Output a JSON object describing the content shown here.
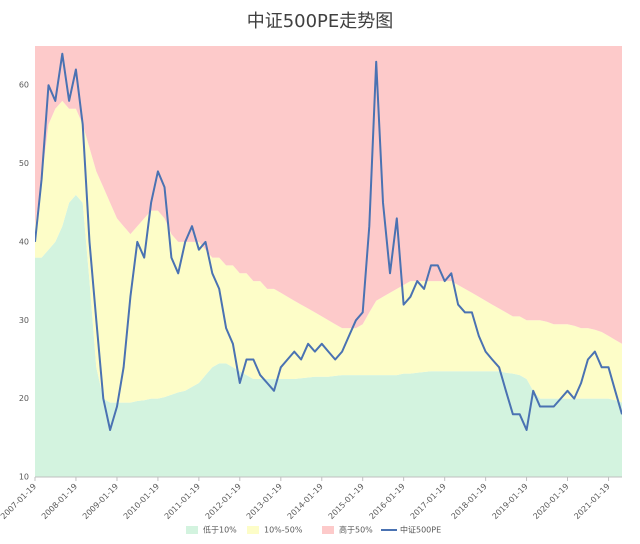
{
  "chart_data": {
    "type": "area-line",
    "title": "中证500PE走势图",
    "x": [
      "2007-01-19",
      "2007-03-19",
      "2007-05-19",
      "2007-07-19",
      "2007-09-19",
      "2007-11-19",
      "2008-01-19",
      "2008-03-19",
      "2008-05-19",
      "2008-07-19",
      "2008-09-19",
      "2008-11-19",
      "2009-01-19",
      "2009-03-19",
      "2009-05-19",
      "2009-07-19",
      "2009-09-19",
      "2009-11-19",
      "2010-01-19",
      "2010-03-19",
      "2010-05-19",
      "2010-07-19",
      "2010-09-19",
      "2010-11-19",
      "2011-01-19",
      "2011-03-19",
      "2011-05-19",
      "2011-07-19",
      "2011-09-19",
      "2011-11-19",
      "2012-01-19",
      "2012-03-19",
      "2012-05-19",
      "2012-07-19",
      "2012-09-19",
      "2012-11-19",
      "2013-01-19",
      "2013-03-19",
      "2013-05-19",
      "2013-07-19",
      "2013-09-19",
      "2013-11-19",
      "2014-01-19",
      "2014-03-19",
      "2014-05-19",
      "2014-07-19",
      "2014-09-19",
      "2014-11-19",
      "2015-01-19",
      "2015-03-19",
      "2015-05-19",
      "2015-07-19",
      "2015-09-19",
      "2015-11-19",
      "2016-01-19",
      "2016-03-19",
      "2016-05-19",
      "2016-07-19",
      "2016-09-19",
      "2016-11-19",
      "2017-01-19",
      "2017-03-19",
      "2017-05-19",
      "2017-07-19",
      "2017-09-19",
      "2017-11-19",
      "2018-01-19",
      "2018-03-19",
      "2018-05-19",
      "2018-07-19",
      "2018-09-19",
      "2018-11-19",
      "2019-01-19",
      "2019-03-19",
      "2019-05-19",
      "2019-07-19",
      "2019-09-19",
      "2019-11-19",
      "2020-01-19",
      "2020-03-19",
      "2020-05-19",
      "2020-07-19",
      "2020-09-19",
      "2020-11-19",
      "2021-01-19",
      "2021-03-19",
      "2021-05-19"
    ],
    "series": [
      {
        "name": "低于10%",
        "kind": "area",
        "color": "#d3f3df",
        "values": [
          38,
          38,
          39,
          40,
          42,
          45,
          46,
          45,
          35,
          24,
          20,
          19.5,
          19.5,
          19.5,
          19.5,
          19.7,
          19.8,
          20,
          20,
          20.2,
          20.5,
          20.8,
          21,
          21.5,
          22,
          23,
          24,
          24.5,
          24.5,
          24,
          23.5,
          23,
          22.5,
          22.5,
          22.5,
          22.5,
          22.5,
          22.5,
          22.5,
          22.6,
          22.7,
          22.8,
          22.8,
          22.8,
          22.9,
          23,
          23,
          23,
          23,
          23,
          23,
          23,
          23,
          23,
          23.2,
          23.2,
          23.3,
          23.4,
          23.5,
          23.5,
          23.5,
          23.5,
          23.5,
          23.5,
          23.5,
          23.5,
          23.5,
          23.5,
          23.5,
          23.3,
          23.2,
          23,
          22.5,
          21,
          20,
          20,
          20,
          20,
          20,
          20,
          20,
          20,
          20,
          20,
          20,
          19.8,
          19.5
        ]
      },
      {
        "name": "10%-50%",
        "kind": "area",
        "color": "#fdfdc8",
        "values": [
          4,
          10,
          16,
          17,
          16,
          12,
          11,
          10,
          17,
          25,
          27,
          25.5,
          23.5,
          22.5,
          21.5,
          22.3,
          23.2,
          24,
          24,
          22.8,
          20.5,
          19.2,
          19,
          18.5,
          18,
          16,
          14,
          13.5,
          12.5,
          13,
          12.5,
          13,
          12.5,
          12.5,
          11.5,
          11.5,
          11,
          10.5,
          10,
          9.4,
          8.8,
          8.2,
          7.7,
          7.2,
          6.6,
          6,
          6,
          6,
          6.5,
          8,
          9.5,
          10,
          10.5,
          11,
          11.3,
          11.8,
          11.7,
          11.6,
          11.5,
          11.5,
          11.5,
          11.5,
          11,
          10.5,
          10,
          9.5,
          9,
          8.5,
          8,
          7.7,
          7.3,
          7.5,
          7.5,
          9,
          10,
          9.8,
          9.5,
          9.5,
          9.5,
          9.3,
          9,
          9,
          8.8,
          8.5,
          8,
          7.7,
          7.5
        ]
      },
      {
        "name": "高于50%",
        "kind": "area",
        "color": "#fdcaca",
        "values": [
          38,
          32,
          25,
          23,
          22,
          23,
          23,
          25,
          28,
          31,
          33,
          35,
          37,
          38,
          39,
          38,
          37,
          36,
          36,
          37,
          39,
          40,
          40,
          40,
          40,
          41,
          42,
          42,
          43,
          43,
          44,
          44,
          45,
          45,
          46,
          46,
          46.5,
          47,
          47.5,
          48,
          48.5,
          49,
          49.5,
          50,
          50.5,
          51,
          51,
          51,
          50.5,
          49,
          47.5,
          47,
          46.5,
          46,
          45.5,
          45,
          45,
          45,
          45,
          45,
          45,
          45,
          45.5,
          46,
          46.5,
          47,
          47.5,
          48,
          48.5,
          49,
          49.5,
          49.5,
          50,
          50,
          50,
          50.2,
          50.5,
          50.5,
          50.5,
          50.7,
          51,
          51,
          51.2,
          51.5,
          52,
          52.5,
          53
        ]
      },
      {
        "name": "中证500PE",
        "kind": "line",
        "color": "#4a72b2",
        "values": [
          40,
          48,
          60,
          58,
          64,
          58,
          62,
          55,
          40,
          30,
          20,
          16,
          19,
          24,
          33,
          40,
          38,
          45,
          49,
          47,
          38,
          36,
          40,
          42,
          39,
          40,
          36,
          34,
          29,
          27,
          22,
          25,
          25,
          23,
          22,
          21,
          24,
          25,
          26,
          25,
          27,
          26,
          27,
          26,
          25,
          26,
          28,
          30,
          31,
          42,
          63,
          45,
          36,
          43,
          32,
          33,
          35,
          34,
          37,
          37,
          35,
          36,
          32,
          31,
          31,
          28,
          26,
          25,
          24,
          21,
          18,
          18,
          16,
          21,
          19,
          19,
          19,
          20,
          21,
          20,
          22,
          25,
          26,
          24,
          24,
          21,
          18
        ]
      }
    ],
    "xlim": [
      "2007-01-19",
      "2021-05-19"
    ],
    "xticks": [
      "2007-01-19",
      "2008-01-19",
      "2009-01-19",
      "2010-01-19",
      "2011-01-19",
      "2012-01-19",
      "2013-01-19",
      "2014-01-19",
      "2015-01-19",
      "2016-01-19",
      "2017-01-19",
      "2018-01-19",
      "2019-01-19",
      "2020-01-19",
      "2021-01-19"
    ],
    "ylim": [
      10,
      65
    ],
    "yticks": [
      10,
      20,
      30,
      40,
      50,
      60
    ],
    "grid": false,
    "legend": "bottom"
  }
}
